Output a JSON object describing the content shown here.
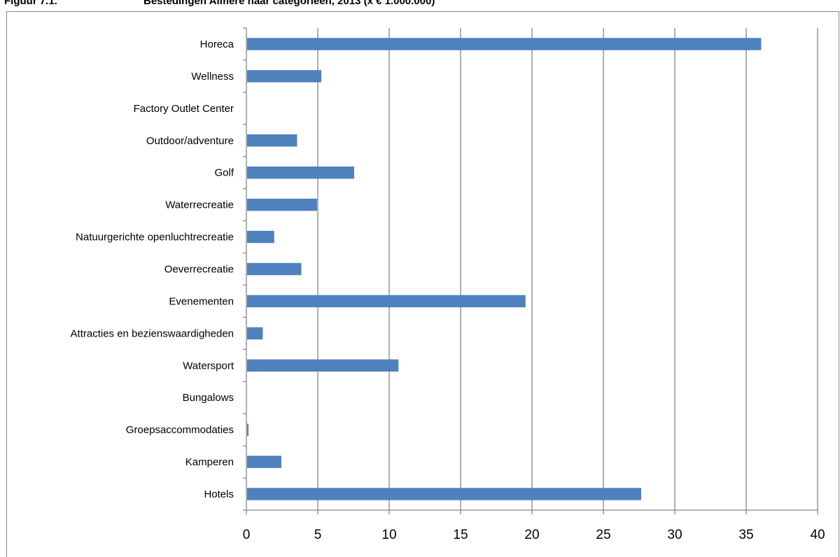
{
  "figure": {
    "label": "Figuur 7.1.",
    "title": "Bestedingen Almere naar categorieën, 2013 (x € 1.000.000)"
  },
  "colors": {
    "bar": "#4f81bd",
    "grid": "#868686",
    "axis": "#868686"
  },
  "chart_data": {
    "type": "bar",
    "orientation": "horizontal",
    "title": "Bestedingen Almere naar categorieën, 2013 (x € 1.000.000)",
    "xlabel": "",
    "ylabel": "",
    "categories": [
      "Horeca",
      "Wellness",
      "Factory Outlet Center",
      "Outdoor/adventure",
      "Golf",
      "Waterrecreatie",
      "Natuurgerichte openluchtrecreatie",
      "Oeverrecreatie",
      "Evenementen",
      "Attracties en bezienswaardigheden",
      "Watersport",
      "Bungalows",
      "Groepsaccommodaties",
      "Kamperen",
      "Hotels"
    ],
    "values": [
      36.0,
      5.2,
      0,
      3.5,
      7.5,
      4.9,
      1.9,
      3.8,
      19.5,
      1.1,
      10.6,
      0,
      0.1,
      2.4,
      27.6
    ],
    "xlim": [
      0,
      40
    ],
    "ticks": [
      0,
      5,
      10,
      15,
      20,
      25,
      30,
      35,
      40
    ],
    "tick_labels": [
      "0",
      "5",
      "10",
      "15",
      "20",
      "25",
      "30",
      "35",
      "40"
    ],
    "grid": true,
    "legend": "none"
  }
}
